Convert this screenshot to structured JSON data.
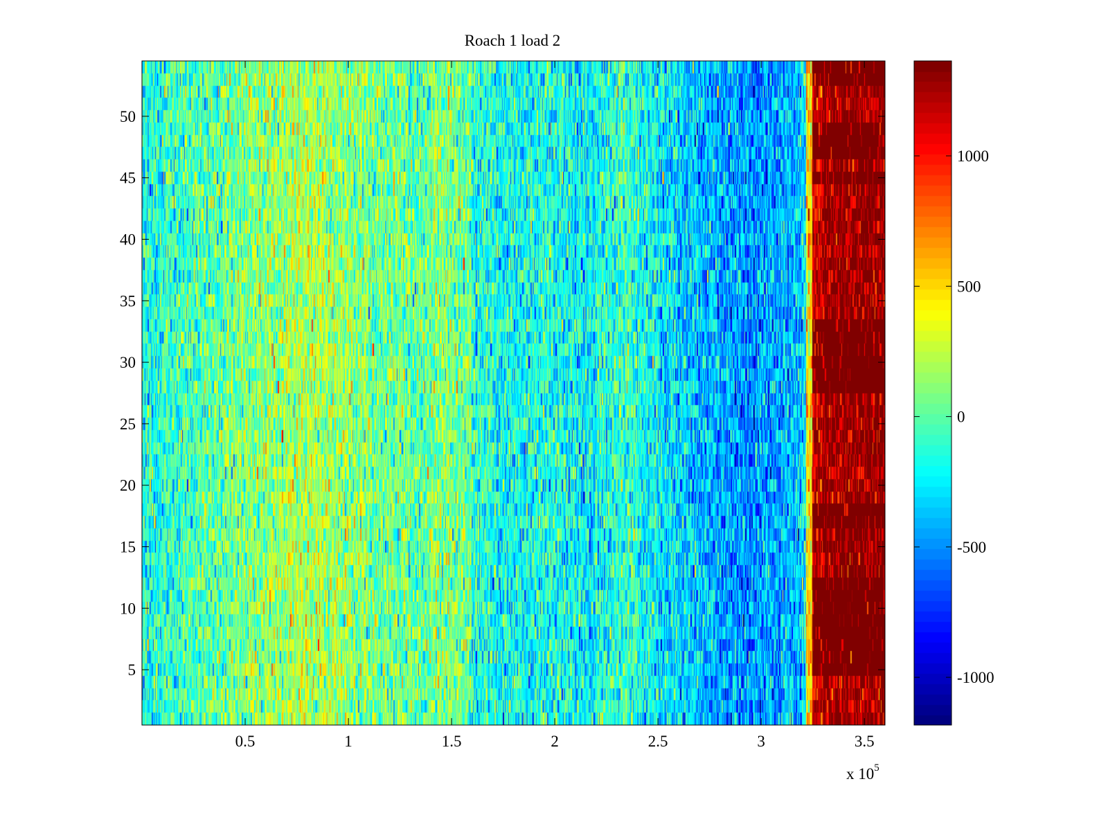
{
  "chart_data": {
    "type": "heatmap",
    "title": "Roach 1 load 2",
    "xlabel": "",
    "ylabel": "",
    "x_multiplier_label": "x 10",
    "x_multiplier_exponent": "5",
    "xlim": [
      0,
      360000
    ],
    "ylim": [
      0.5,
      54.5
    ],
    "rows": 54,
    "x_ticks": [
      {
        "value": 50000,
        "label": "0.5"
      },
      {
        "value": 100000,
        "label": "1"
      },
      {
        "value": 150000,
        "label": "1.5"
      },
      {
        "value": 200000,
        "label": "2"
      },
      {
        "value": 250000,
        "label": "2.5"
      },
      {
        "value": 300000,
        "label": "3"
      },
      {
        "value": 350000,
        "label": "3.5"
      }
    ],
    "y_ticks": [
      {
        "value": 5,
        "label": "5"
      },
      {
        "value": 10,
        "label": "10"
      },
      {
        "value": 15,
        "label": "15"
      },
      {
        "value": 20,
        "label": "20"
      },
      {
        "value": 25,
        "label": "25"
      },
      {
        "value": 30,
        "label": "30"
      },
      {
        "value": 35,
        "label": "35"
      },
      {
        "value": 40,
        "label": "40"
      },
      {
        "value": 45,
        "label": "45"
      },
      {
        "value": 50,
        "label": "50"
      }
    ],
    "colorbar": {
      "colormap": "jet",
      "clim": [
        -1183,
        1364
      ],
      "ticks": [
        {
          "value": -1000,
          "label": "-1000"
        },
        {
          "value": -500,
          "label": "-500"
        },
        {
          "value": 0,
          "label": "0"
        },
        {
          "value": 500,
          "label": "500"
        },
        {
          "value": 1000,
          "label": "1000"
        }
      ]
    },
    "column_bin_width": 10000,
    "column_mean_values": [
      -150,
      -100,
      -50,
      0,
      50,
      100,
      150,
      200,
      200,
      150,
      100,
      50,
      50,
      0,
      100,
      50,
      -150,
      -200,
      -200,
      -150,
      -200,
      -250,
      -150,
      -100,
      -200,
      -300,
      -350,
      -400,
      -450,
      -500,
      -450,
      -400,
      1150,
      1300,
      1300,
      1300
    ],
    "noise_std": 220,
    "transition_x": 322000,
    "saturated_rows_in_high_region": [
      5,
      6,
      7,
      8,
      9,
      10,
      11,
      12,
      17,
      18,
      28,
      29,
      30,
      31,
      32,
      33,
      45,
      47,
      48,
      49,
      53,
      54
    ]
  }
}
